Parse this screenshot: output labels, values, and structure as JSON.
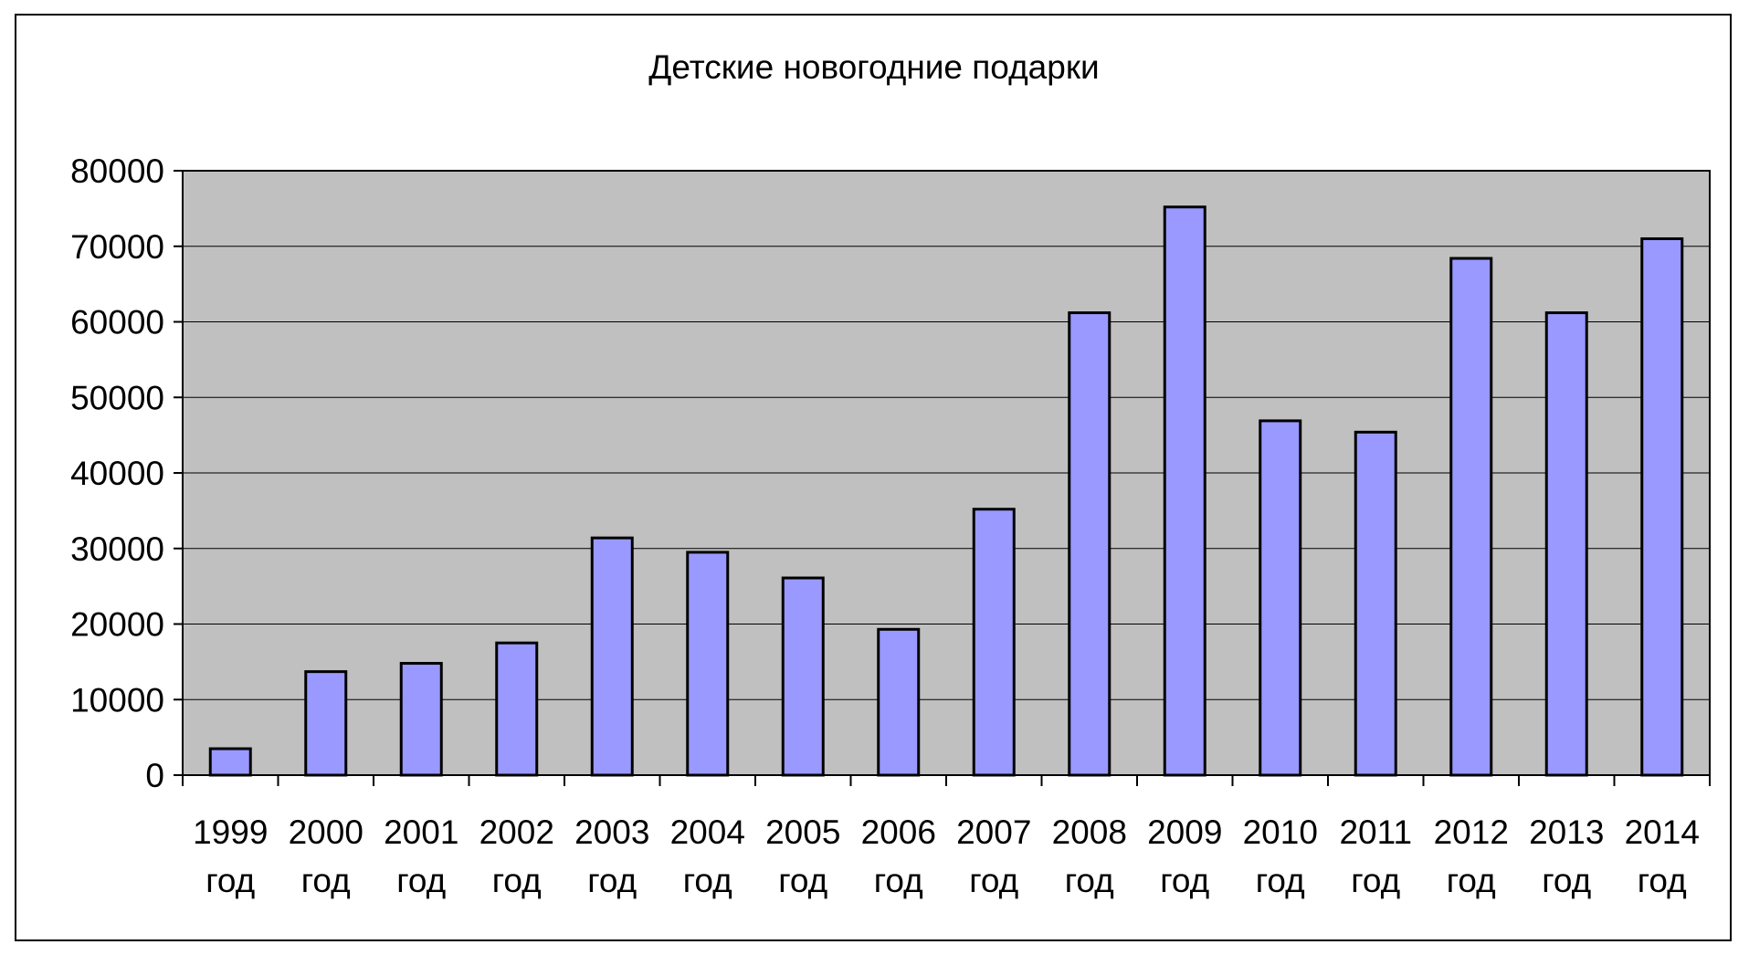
{
  "colors": {
    "plot_background": "#c0c0c0",
    "bar_fill": "#9999ff",
    "bar_stroke": "#000000",
    "gridline": "#000000",
    "frame": "#000000"
  },
  "chart_data": {
    "type": "bar",
    "title": "Детские новогодние подарки",
    "xlabel": "",
    "ylabel": "",
    "categories": [
      [
        "1999",
        "год"
      ],
      [
        "2000",
        "год"
      ],
      [
        "2001",
        "год"
      ],
      [
        "2002",
        "год"
      ],
      [
        "2003",
        "год"
      ],
      [
        "2004",
        "год"
      ],
      [
        "2005",
        "год"
      ],
      [
        "2006",
        "год"
      ],
      [
        "2007",
        "год"
      ],
      [
        "2008",
        "год"
      ],
      [
        "2009",
        "год"
      ],
      [
        "2010",
        "год"
      ],
      [
        "2011",
        "год"
      ],
      [
        "2012",
        "год"
      ],
      [
        "2013",
        "год"
      ],
      [
        "2014",
        "год"
      ]
    ],
    "values": [
      3500,
      13700,
      14800,
      17500,
      31400,
      29500,
      26100,
      19300,
      35200,
      61200,
      75200,
      46900,
      45400,
      68400,
      61200,
      71000
    ],
    "ylim": [
      0,
      80000
    ],
    "yticks": [
      "0",
      "10000",
      "20000",
      "30000",
      "40000",
      "50000",
      "60000",
      "70000",
      "80000"
    ],
    "grid": true,
    "legend": "none"
  }
}
